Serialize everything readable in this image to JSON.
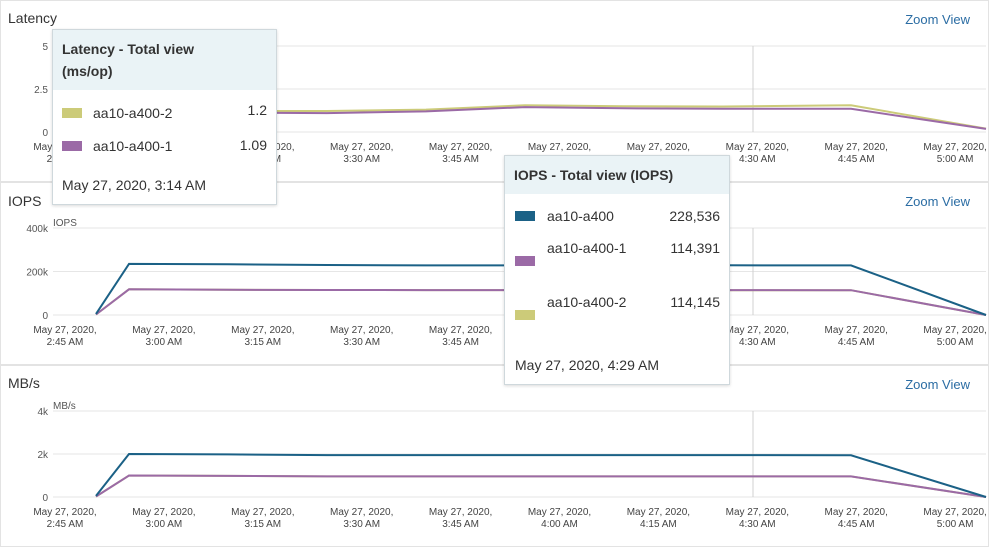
{
  "x_ticks": [
    [
      "May 27, 2020,",
      "2:45 AM"
    ],
    [
      "May 27, 2020,",
      "3:00 AM"
    ],
    [
      "May 27, 2020,",
      "3:15 AM"
    ],
    [
      "May 27, 2020,",
      "3:30 AM"
    ],
    [
      "May 27, 2020,",
      "3:45 AM"
    ],
    [
      "May 27, 2020,",
      "4:00 AM"
    ],
    [
      "May 27, 2020,",
      "4:15 AM"
    ],
    [
      "May 27, 2020,",
      "4:30 AM"
    ],
    [
      "May 27, 2020,",
      "4:45 AM"
    ],
    [
      "May 27, 2020,",
      "5:00 AM"
    ]
  ],
  "colors": {
    "aa10-a400": "#1b6186",
    "aa10-a400-1": "#9b6aa6",
    "aa10-a400-2": "#cccb79"
  },
  "panels": {
    "latency": {
      "title": "Latency",
      "zoom": "Zoom View",
      "unit": "2.5",
      "yticks": [
        "5",
        "2.5",
        "0"
      ]
    },
    "iops": {
      "title": "IOPS",
      "zoom": "Zoom View",
      "unit": "IOPS",
      "yticks": [
        "400k",
        "200k",
        "0"
      ]
    },
    "mbs": {
      "title": "MB/s",
      "zoom": "Zoom View",
      "unit": "MB/s",
      "yticks": [
        "4k",
        "2k",
        "0"
      ]
    }
  },
  "tooltips": {
    "latency": {
      "title": "Latency - Total view (ms/op)",
      "rows": [
        {
          "name": "aa10-a400-2",
          "value": "1.2",
          "color": "#cccb79"
        },
        {
          "name": "aa10-a400-1",
          "value": "1.09",
          "color": "#9b6aa6"
        }
      ],
      "timestamp": "May 27, 2020, 3:14 AM"
    },
    "iops": {
      "title": "IOPS - Total view (IOPS)",
      "rows": [
        {
          "name": "aa10-a400",
          "value": "228,536",
          "color": "#1b6186"
        },
        {
          "name": "aa10-a400-1",
          "value": "114,391",
          "color": "#9b6aa6"
        },
        {
          "name": "aa10-a400-2",
          "value": "114,145",
          "color": "#cccb79"
        }
      ],
      "timestamp": "May 27, 2020, 4:29 AM"
    }
  },
  "chart_data": [
    {
      "type": "line",
      "ylabel": "",
      "ylim": [
        0,
        5
      ],
      "x": [
        "2:45",
        "3:00",
        "3:15",
        "3:30",
        "3:45",
        "4:00",
        "4:15",
        "4:30",
        "4:45",
        "5:00"
      ],
      "series": [
        {
          "name": "aa10-a400-2",
          "values": [
            1.2,
            1.2,
            1.22,
            1.22,
            1.3,
            1.55,
            1.5,
            1.48,
            1.55,
            0.2
          ]
        },
        {
          "name": "aa10-a400-1",
          "values": [
            1.09,
            1.09,
            1.12,
            1.1,
            1.2,
            1.45,
            1.38,
            1.35,
            1.35,
            0.18
          ]
        }
      ]
    },
    {
      "type": "line",
      "ylabel": "IOPS",
      "ylim": [
        0,
        400000
      ],
      "x": [
        "2:45",
        "3:00",
        "3:15",
        "3:30",
        "3:45",
        "4:00",
        "4:15",
        "4:30",
        "4:45",
        "5:00"
      ],
      "series": [
        {
          "name": "aa10-a400",
          "values": [
            5000,
            235000,
            233000,
            230000,
            228000,
            228000,
            228500,
            228536,
            228000,
            0
          ]
        },
        {
          "name": "aa10-a400-1",
          "values": [
            2500,
            118000,
            116000,
            115000,
            114500,
            114500,
            114400,
            114391,
            114000,
            0
          ]
        },
        {
          "name": "aa10-a400-2",
          "values": [
            2500,
            118000,
            116000,
            115000,
            114500,
            114500,
            114200,
            114145,
            114000,
            0
          ]
        }
      ]
    },
    {
      "type": "line",
      "ylabel": "MB/s",
      "ylim": [
        0,
        4000
      ],
      "x": [
        "2:45",
        "3:00",
        "3:15",
        "3:30",
        "3:45",
        "4:00",
        "4:15",
        "4:30",
        "4:45",
        "5:00"
      ],
      "series": [
        {
          "name": "aa10-a400",
          "values": [
            50,
            2000,
            1980,
            1950,
            1950,
            1950,
            1950,
            1950,
            1940,
            0
          ]
        },
        {
          "name": "aa10-a400-1",
          "values": [
            25,
            1000,
            980,
            960,
            960,
            960,
            960,
            960,
            960,
            0
          ]
        },
        {
          "name": "aa10-a400-2",
          "values": [
            25,
            1000,
            980,
            960,
            960,
            960,
            960,
            960,
            960,
            0
          ]
        }
      ]
    }
  ]
}
